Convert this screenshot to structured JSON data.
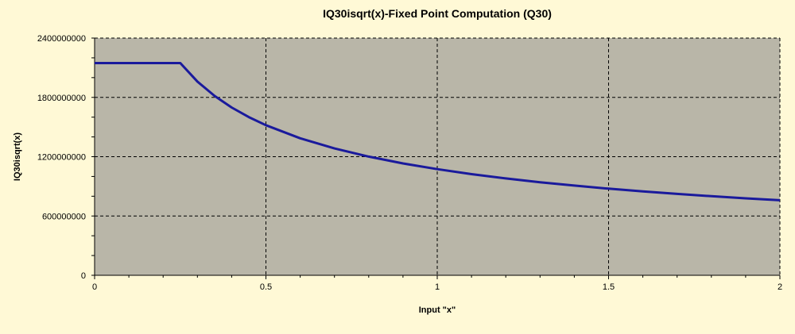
{
  "chart_data": {
    "type": "line",
    "title": "IQ30isqrt(x)-Fixed Point Computation (Q30)",
    "xlabel": "Input \"x\"",
    "ylabel": "IQ30isqrt(x)",
    "xlim": [
      0,
      2
    ],
    "ylim": [
      0,
      2400000000
    ],
    "x_ticks": [
      0,
      0.5,
      1,
      1.5,
      2
    ],
    "x_tick_labels": [
      "0",
      "0.5",
      "1",
      "1.5",
      "2"
    ],
    "y_ticks": [
      0,
      600000000,
      1200000000,
      1800000000,
      2400000000
    ],
    "y_tick_labels": [
      "0",
      "600000000",
      "1200000000",
      "1800000000",
      "2400000000"
    ],
    "grid": true,
    "legend": "none",
    "colors": {
      "plot_background": "#b9b6a8",
      "line": "#1a1a9c",
      "page_background": "#fff9d6",
      "grid": "#000000"
    },
    "series": [
      {
        "values": [
          [
            0,
            2147483647
          ],
          [
            0.05,
            2147483647
          ],
          [
            0.1,
            2147483647
          ],
          [
            0.15,
            2147483647
          ],
          [
            0.2,
            2147483647
          ],
          [
            0.25,
            2147483647
          ],
          [
            0.3,
            1960345000
          ],
          [
            0.35,
            1814932000
          ],
          [
            0.4,
            1697734000
          ],
          [
            0.45,
            1600600000
          ],
          [
            0.5,
            1518500000
          ],
          [
            0.6,
            1386190000
          ],
          [
            0.7,
            1283378000
          ],
          [
            0.8,
            1200479000
          ],
          [
            0.9,
            1131815000
          ],
          [
            1.0,
            1073741824
          ],
          [
            1.1,
            1023770000
          ],
          [
            1.2,
            980178000
          ],
          [
            1.3,
            941728000
          ],
          [
            1.4,
            907480000
          ],
          [
            1.5,
            876706000
          ],
          [
            1.6,
            848867000
          ],
          [
            1.7,
            823540000
          ],
          [
            1.8,
            800350000
          ],
          [
            1.9,
            778980000
          ],
          [
            2.0,
            759250000
          ]
        ]
      }
    ]
  }
}
